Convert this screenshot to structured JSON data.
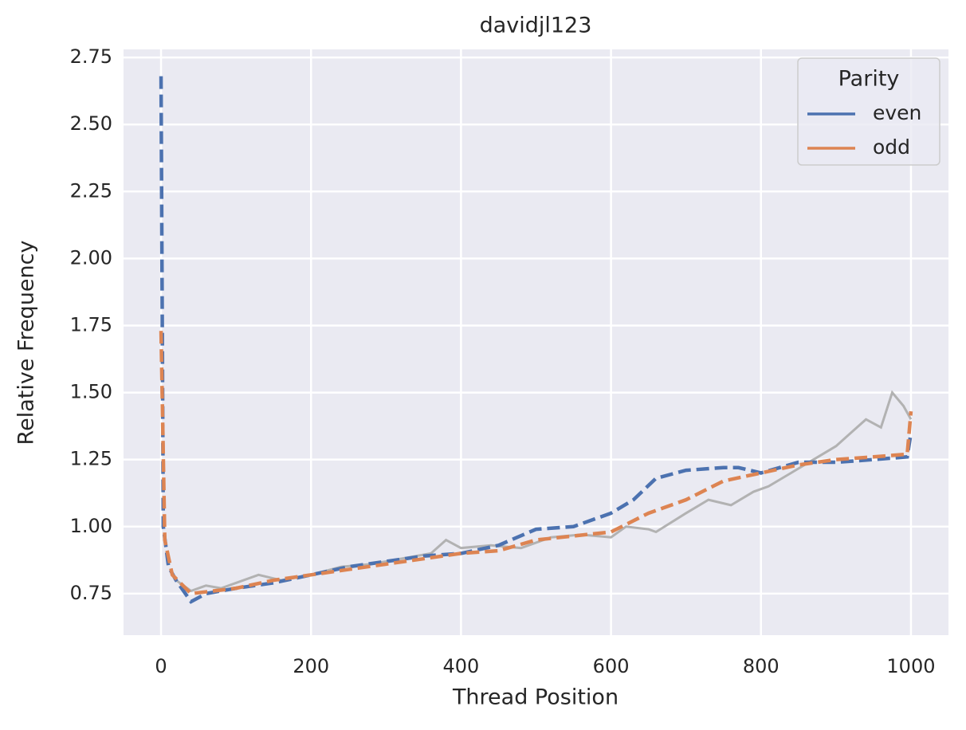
{
  "chart_data": {
    "type": "line",
    "title": "davidjl123",
    "x_label": "Thread Position",
    "y_label": "Relative Frequency",
    "xlim": [
      -50,
      1050
    ],
    "ylim": [
      0.595,
      2.78
    ],
    "xticks": [
      0,
      200,
      400,
      600,
      800,
      1000
    ],
    "yticks": [
      0.75,
      {
        "value": 1.0,
        "label": "1.00"
      },
      1.25,
      {
        "value": 1.5,
        "label": "1.50"
      },
      1.75,
      {
        "value": 2.0,
        "label": "2.00"
      },
      2.25,
      {
        "value": 2.5,
        "label": "2.50"
      },
      2.75
    ],
    "grid": true,
    "background": "#eaeaf2",
    "legend_title": "Parity",
    "legend_position": "upper right",
    "series": [
      {
        "color": "#b2b2b2",
        "linestyle": "solid",
        "x": [
          20,
          40,
          60,
          80,
          100,
          130,
          160,
          200,
          240,
          280,
          320,
          360,
          380,
          400,
          440,
          480,
          520,
          560,
          600,
          620,
          650,
          660,
          700,
          730,
          760,
          790,
          810,
          840,
          870,
          900,
          920,
          940,
          960,
          975,
          990,
          1000
        ],
        "values": [
          0.8,
          0.76,
          0.78,
          0.77,
          0.79,
          0.82,
          0.8,
          0.82,
          0.85,
          0.86,
          0.88,
          0.9,
          0.95,
          0.92,
          0.93,
          0.92,
          0.96,
          0.97,
          0.96,
          1.0,
          0.99,
          0.98,
          1.05,
          1.1,
          1.08,
          1.13,
          1.15,
          1.2,
          1.25,
          1.3,
          1.35,
          1.4,
          1.37,
          1.5,
          1.45,
          1.4
        ]
      },
      {
        "name": "even",
        "color": "#4c72b0",
        "linestyle": "dashed",
        "x": [
          0,
          3,
          10,
          20,
          40,
          60,
          100,
          150,
          200,
          250,
          300,
          350,
          400,
          450,
          500,
          550,
          600,
          630,
          660,
          700,
          750,
          770,
          800,
          850,
          900,
          950,
          995,
          1000
        ],
        "values": [
          2.68,
          1.0,
          0.85,
          0.8,
          0.72,
          0.75,
          0.77,
          0.79,
          0.82,
          0.85,
          0.87,
          0.89,
          0.9,
          0.93,
          0.99,
          1.0,
          1.05,
          1.1,
          1.18,
          1.21,
          1.22,
          1.22,
          1.2,
          1.24,
          1.24,
          1.25,
          1.26,
          1.35
        ]
      },
      {
        "name": "odd",
        "color": "#dd8452",
        "linestyle": "dashed",
        "x": [
          0,
          5,
          15,
          40,
          100,
          150,
          200,
          300,
          400,
          450,
          500,
          600,
          650,
          700,
          750,
          800,
          850,
          900,
          950,
          995,
          1000
        ],
        "values": [
          1.73,
          0.95,
          0.82,
          0.75,
          0.77,
          0.8,
          0.82,
          0.86,
          0.9,
          0.91,
          0.95,
          0.98,
          1.05,
          1.1,
          1.17,
          1.2,
          1.23,
          1.25,
          1.26,
          1.27,
          1.43
        ]
      }
    ]
  }
}
